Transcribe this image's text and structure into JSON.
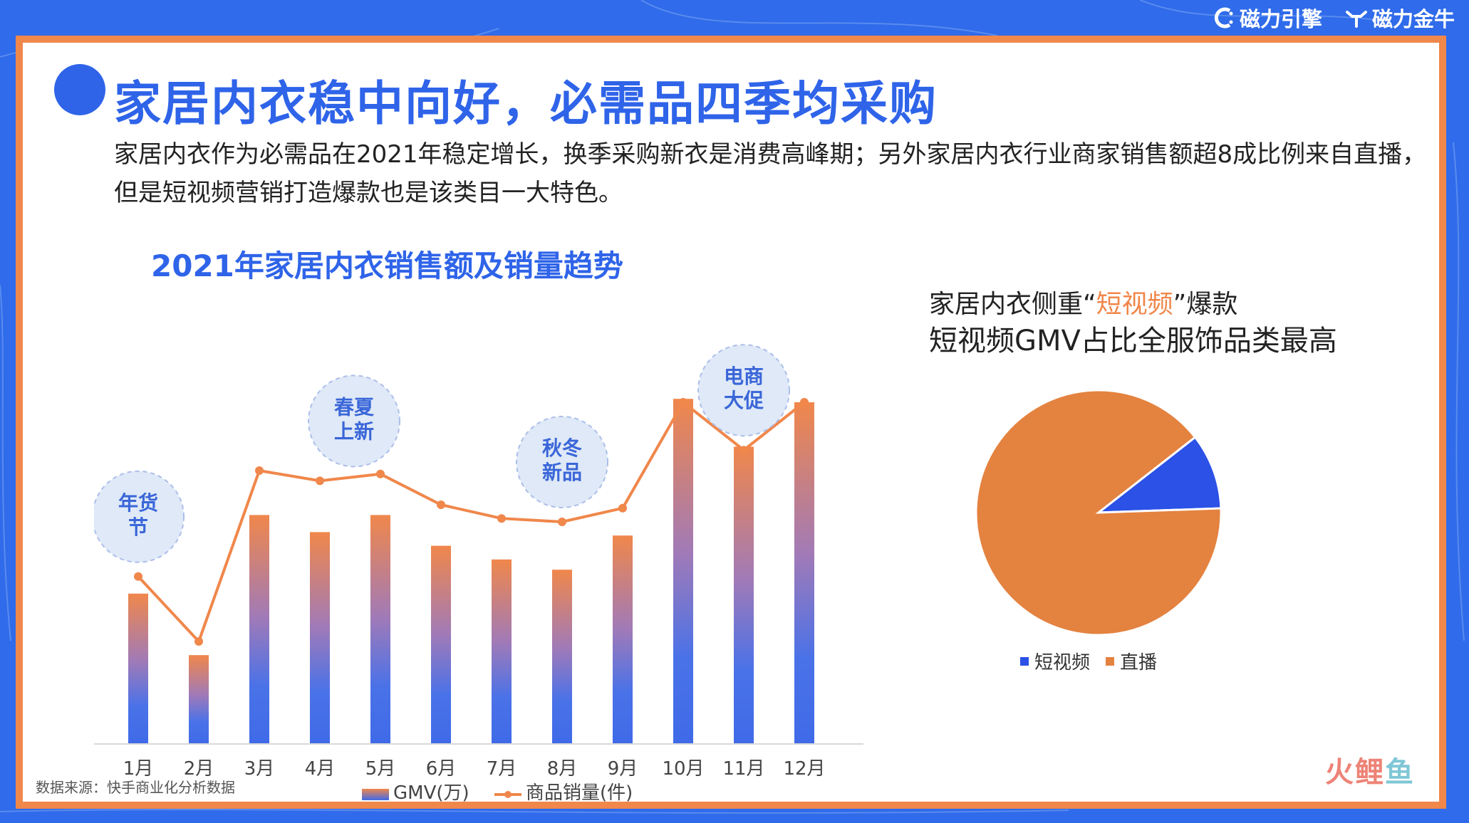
{
  "brands": {
    "left": "磁力引擎",
    "right": "磁力金牛"
  },
  "title": "家居内衣稳中向好，必需品四季均采购",
  "description": "家居内衣作为必需品在2021年稳定增长，换季采购新衣是消费高峰期；另外家居内衣行业商家销售额超8成比例来自直播，但是短视频营销打造爆款也是该类目一大特色。",
  "source": "数据来源：快手商业化分析数据",
  "pie_heading": {
    "line1_prefix": "家居内衣侧重“",
    "line1_highlight": "短视频",
    "line1_suffix": "”爆款",
    "line2": "短视频GMV占比全服饰品类最高"
  },
  "watermark": {
    "a": "火",
    "b": "鲤",
    "c": "鱼"
  },
  "colors": {
    "accent_blue": "#2f64e9",
    "accent_orange": "#f0874b",
    "bubble_fill": "#dce7f7"
  },
  "chart_data": [
    {
      "type": "bar",
      "title": "2021年家居内衣销售额及销量趋势",
      "categories": [
        "1月",
        "2月",
        "3月",
        "4月",
        "5月",
        "6月",
        "7月",
        "8月",
        "9月",
        "10月",
        "11月",
        "12月"
      ],
      "ylim": [
        0,
        100
      ],
      "series": [
        {
          "name": "GMV(万)",
          "type": "bar",
          "values": [
            44,
            26,
            67,
            62,
            67,
            58,
            54,
            51,
            61,
            101,
            87,
            100
          ]
        },
        {
          "name": "商品销量(件)",
          "type": "line",
          "values": [
            49,
            30,
            80,
            77,
            79,
            70,
            66,
            65,
            69,
            100,
            86,
            100
          ]
        }
      ],
      "annotations": [
        {
          "text": [
            "年货",
            "节"
          ],
          "category": "1月"
        },
        {
          "text": [
            "春夏",
            "上新"
          ],
          "category": "4月"
        },
        {
          "text": [
            "秋冬",
            "新品"
          ],
          "category": "8月"
        },
        {
          "text": [
            "电商",
            "大促"
          ],
          "category": "11月"
        }
      ],
      "legend_position": "bottom"
    },
    {
      "type": "pie",
      "labels": [
        "短视频",
        "直播"
      ],
      "values": [
        10,
        90
      ],
      "colors": [
        "#2b51e6",
        "#e4823f"
      ],
      "legend_position": "bottom"
    }
  ]
}
